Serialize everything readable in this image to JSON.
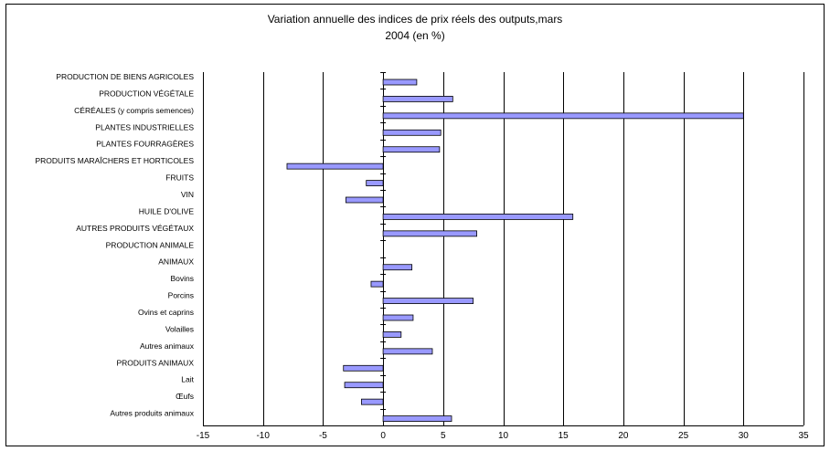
{
  "chart_data": {
    "type": "bar",
    "orientation": "horizontal",
    "title": "Variation annuelle des indices de prix réels des outputs,mars 2004 (en %)",
    "title_lines": [
      "Variation annuelle des indices de prix réels des outputs,mars",
      "2004 (en %)"
    ],
    "categories": [
      "PRODUCTION DE BIENS AGRICOLES",
      "PRODUCTION VÉGÉTALE",
      "CÉRÉALES (y compris semences)",
      "PLANTES INDUSTRIELLES",
      "PLANTES FOURRAGÈRES",
      "PRODUITS MARAÎCHERS ET HORTICOLES",
      "FRUITS",
      "VIN",
      "HUILE D'OLIVE",
      "AUTRES PRODUITS VÉGÉTAUX",
      "PRODUCTION ANIMALE",
      "ANIMAUX",
      "Bovins",
      "Porcins",
      "Ovins et caprins",
      "Volailles",
      "Autres animaux",
      "PRODUITS ANIMAUX",
      "Lait",
      "Œufs",
      "Autres produits animaux"
    ],
    "values": [
      2.8,
      5.8,
      30.0,
      4.8,
      4.7,
      -8.0,
      -1.4,
      -3.1,
      15.8,
      7.8,
      0,
      2.4,
      -1.0,
      7.5,
      2.5,
      1.5,
      4.1,
      -3.3,
      -3.2,
      -1.8,
      5.7
    ],
    "xlim": [
      -15,
      35
    ],
    "xticks": [
      -15,
      -10,
      -5,
      0,
      5,
      10,
      15,
      20,
      25,
      30,
      35
    ],
    "grid": "vertical",
    "legend": "none",
    "bar_color": "#9999ff",
    "bar_edge_color": "#000000"
  }
}
